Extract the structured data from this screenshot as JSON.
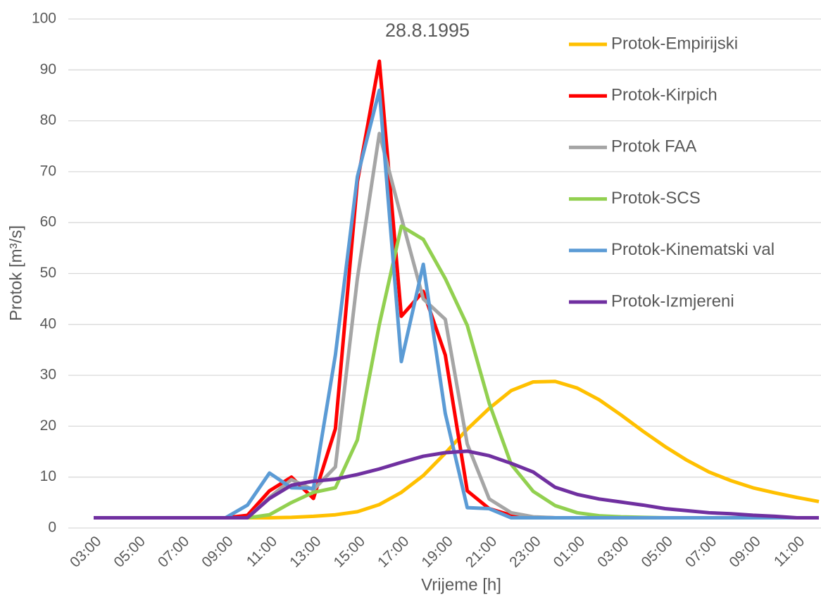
{
  "chart_data": {
    "type": "line",
    "title": "28.8.1995",
    "x_label": "Vrijeme [h]",
    "y_label": "Protok [m³/s]",
    "categories": [
      "03:00",
      null,
      "05:00",
      null,
      "07:00",
      null,
      "09:00",
      null,
      "11:00",
      null,
      "13:00",
      null,
      "15:00",
      null,
      "17:00",
      null,
      "19:00",
      null,
      "21:00",
      null,
      "23:00",
      null,
      "01:00",
      null,
      "03:00",
      null,
      "05:00",
      null,
      "07:00",
      null,
      "09:00",
      null,
      "11:00",
      null
    ],
    "series": [
      {
        "name": "Protok-Empirijski",
        "color": "#FFC000",
        "values": [
          2,
          2,
          2,
          2,
          2,
          2,
          2,
          2,
          2.0,
          2.1,
          2.3,
          2.6,
          3.2,
          4.6,
          7,
          10.3,
          14.7,
          19.4,
          23.5,
          27,
          28.7,
          28.8,
          27.5,
          25.2,
          22.2,
          19,
          16,
          13.3,
          11,
          9.3,
          7.9,
          6.9,
          6,
          5.2
        ]
      },
      {
        "name": "Protok-Kirpich",
        "color": "#FF0000",
        "values": [
          2,
          2,
          2,
          2,
          2,
          2,
          2,
          2.5,
          7.3,
          10,
          5.8,
          19.5,
          68,
          91.7,
          41.6,
          46.5,
          34,
          7.3,
          3.8,
          2.5,
          2.1,
          2,
          2,
          2,
          2,
          2,
          2,
          2,
          2,
          2,
          2,
          2,
          2,
          2
        ]
      },
      {
        "name": "Protok FAA",
        "color": "#A5A5A5",
        "values": [
          2,
          2,
          2,
          2,
          2,
          2,
          2,
          2,
          6,
          9.5,
          7.5,
          12,
          49,
          77.5,
          61,
          45,
          41,
          16.5,
          5.7,
          3,
          2.2,
          2,
          2,
          2,
          2,
          2,
          2,
          2,
          2,
          2,
          2,
          2,
          2,
          2
        ]
      },
      {
        "name": "Protok-SCS",
        "color": "#92D050",
        "values": [
          2,
          2,
          2,
          2,
          2,
          2,
          2,
          2,
          2.6,
          5,
          7,
          7.9,
          17.3,
          40,
          59.3,
          56.7,
          49,
          39.8,
          24.5,
          12.5,
          7.2,
          4.4,
          3,
          2.4,
          2.2,
          2.1,
          2,
          2,
          2,
          2,
          2,
          2,
          2,
          2
        ]
      },
      {
        "name": "Protok-Kinematski val",
        "color": "#5B9BD5",
        "values": [
          2,
          2,
          2,
          2,
          2,
          2,
          2,
          4.5,
          10.8,
          7.9,
          7.8,
          34,
          69,
          86,
          32.7,
          51.8,
          22.5,
          4,
          3.8,
          2,
          2,
          2,
          2,
          2,
          2,
          2,
          2,
          2,
          2,
          2,
          2,
          2,
          2,
          2
        ]
      },
      {
        "name": "Protok-Izmjereni",
        "color": "#7030A0",
        "values": [
          2,
          2,
          2,
          2,
          2,
          2,
          2,
          2,
          5.8,
          8.4,
          9.2,
          9.6,
          10.5,
          11.6,
          12.9,
          14.1,
          14.8,
          15.1,
          14.2,
          12.7,
          11,
          8,
          6.6,
          5.7,
          5.1,
          4.5,
          3.8,
          3.4,
          3.0,
          2.8,
          2.5,
          2.3,
          2.0,
          2
        ]
      }
    ],
    "ylim": [
      0,
      100
    ],
    "yticks": [
      0,
      10,
      20,
      30,
      40,
      50,
      60,
      70,
      80,
      90,
      100
    ],
    "grid": true,
    "legend": "right"
  }
}
